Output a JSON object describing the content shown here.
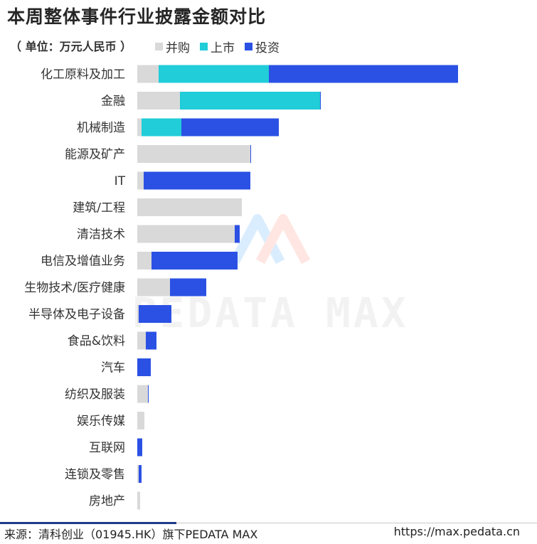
{
  "title": "本周整体事件行业披露金额对比",
  "unit_label": "（ 单位：万元人民币 ）",
  "watermark": "PEDATA MAX",
  "footer": {
    "source": "来源：清科创业（01945.HK）旗下PEDATA MAX",
    "url": "https://max.pedata.cn"
  },
  "colors": {
    "merger": "#d9d9d9",
    "listing": "#20cdd8",
    "investment": "#2b51e4"
  },
  "chart_data": {
    "type": "bar",
    "orientation": "horizontal",
    "stacked": true,
    "categories": [
      "化工原料及加工",
      "金融",
      "机械制造",
      "能源及矿产",
      "IT",
      "建筑/工程",
      "清洁技术",
      "电信及增值业务",
      "生物技术/医疗健康",
      "半导体及电子设备",
      "食品&饮料",
      "汽车",
      "纺织及服装",
      "娱乐传媒",
      "互联网",
      "连锁及零售",
      "房地产"
    ],
    "series": [
      {
        "name": "并购",
        "color": "#d9d9d9",
        "values": [
          30,
          60,
          6,
          159,
          9,
          147,
          137,
          20,
          46,
          2,
          12,
          0,
          15,
          10,
          0,
          2,
          4
        ]
      },
      {
        "name": "上市",
        "color": "#20cdd8",
        "values": [
          155,
          197,
          56,
          0,
          0,
          0,
          0,
          0,
          0,
          0,
          0,
          0,
          0,
          0,
          0,
          0,
          0
        ]
      },
      {
        "name": "投资",
        "color": "#2b51e4",
        "values": [
          266,
          1,
          137,
          1,
          150,
          0,
          7,
          121,
          51,
          46,
          15,
          19,
          1,
          0,
          7,
          4,
          0
        ]
      }
    ],
    "legend_position": "top",
    "grid": false
  }
}
